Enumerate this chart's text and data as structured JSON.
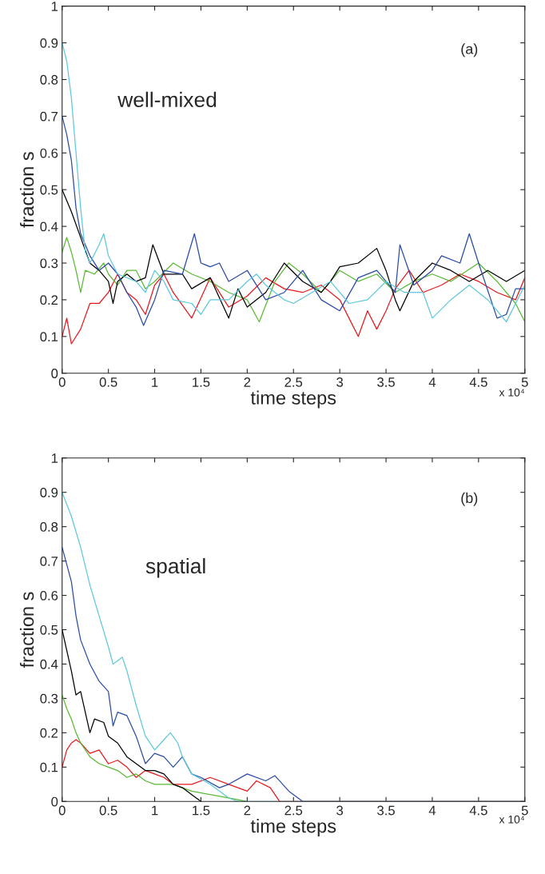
{
  "chart_data": [
    {
      "type": "line",
      "xlabel": "time steps",
      "ylabel": "fraction s",
      "xlim": [
        0,
        5
      ],
      "xticks": [
        0,
        0.5,
        1,
        1.5,
        2,
        2.5,
        3,
        3.5,
        4,
        4.5,
        5
      ],
      "ylim": [
        0,
        1
      ],
      "yticks": [
        0,
        0.1,
        0.2,
        0.3,
        0.4,
        0.5,
        0.6,
        0.7,
        0.8,
        0.9,
        1
      ],
      "grid": false,
      "legend": false,
      "annotations": [
        "(a)",
        "well-mixed",
        "x 10⁴"
      ],
      "series": [
        {
          "color": "#e8191d",
          "x": [
            0,
            0.05,
            0.1,
            0.2,
            0.3,
            0.4,
            0.5,
            0.6,
            0.7,
            0.8,
            0.9,
            1.0,
            1.1,
            1.2,
            1.4,
            1.6,
            1.8,
            2.0,
            2.2,
            2.4,
            2.6,
            2.8,
            3.0,
            3.1,
            3.2,
            3.3,
            3.4,
            3.5,
            3.6,
            3.75,
            3.9,
            4.1,
            4.3,
            4.5,
            4.7,
            4.9,
            5.0
          ],
          "values": [
            0.1,
            0.15,
            0.08,
            0.12,
            0.19,
            0.19,
            0.22,
            0.27,
            0.22,
            0.2,
            0.16,
            0.24,
            0.27,
            0.22,
            0.15,
            0.26,
            0.18,
            0.21,
            0.26,
            0.23,
            0.22,
            0.24,
            0.2,
            0.15,
            0.1,
            0.17,
            0.12,
            0.17,
            0.23,
            0.28,
            0.22,
            0.24,
            0.27,
            0.25,
            0.22,
            0.2,
            0.26
          ]
        },
        {
          "color": "#5ab935",
          "x": [
            0,
            0.05,
            0.1,
            0.15,
            0.2,
            0.25,
            0.35,
            0.45,
            0.5,
            0.6,
            0.7,
            0.8,
            0.9,
            1.0,
            1.2,
            1.4,
            1.6,
            1.8,
            2.0,
            2.13,
            2.3,
            2.45,
            2.6,
            2.8,
            3.0,
            3.2,
            3.4,
            3.6,
            3.8,
            4.0,
            4.2,
            4.5,
            4.7,
            4.9,
            5.0
          ],
          "values": [
            0.33,
            0.37,
            0.33,
            0.28,
            0.22,
            0.28,
            0.27,
            0.3,
            0.27,
            0.24,
            0.28,
            0.28,
            0.23,
            0.25,
            0.3,
            0.27,
            0.25,
            0.22,
            0.2,
            0.14,
            0.25,
            0.3,
            0.27,
            0.22,
            0.28,
            0.25,
            0.27,
            0.22,
            0.25,
            0.27,
            0.25,
            0.3,
            0.25,
            0.19,
            0.14
          ]
        },
        {
          "color": "#000000",
          "x": [
            0,
            0.1,
            0.2,
            0.3,
            0.4,
            0.5,
            0.55,
            0.6,
            0.7,
            0.8,
            0.9,
            0.98,
            1.1,
            1.3,
            1.4,
            1.6,
            1.8,
            1.9,
            2.0,
            2.2,
            2.4,
            2.6,
            2.8,
            2.9,
            3.0,
            3.2,
            3.4,
            3.5,
            3.6,
            3.65,
            3.8,
            4.0,
            4.2,
            4.4,
            4.6,
            4.8,
            5.0
          ],
          "values": [
            0.5,
            0.44,
            0.37,
            0.3,
            0.28,
            0.25,
            0.19,
            0.25,
            0.27,
            0.25,
            0.26,
            0.35,
            0.27,
            0.27,
            0.23,
            0.26,
            0.15,
            0.23,
            0.18,
            0.22,
            0.3,
            0.25,
            0.22,
            0.25,
            0.29,
            0.3,
            0.34,
            0.28,
            0.2,
            0.17,
            0.25,
            0.3,
            0.28,
            0.25,
            0.28,
            0.25,
            0.28
          ]
        },
        {
          "color": "#2b4ba6",
          "x": [
            0,
            0.05,
            0.1,
            0.15,
            0.2,
            0.3,
            0.4,
            0.5,
            0.6,
            0.7,
            0.8,
            0.88,
            1.0,
            1.1,
            1.3,
            1.43,
            1.5,
            1.6,
            1.7,
            1.8,
            2.0,
            2.2,
            2.4,
            2.6,
            2.8,
            3.0,
            3.2,
            3.4,
            3.6,
            3.65,
            3.8,
            4.0,
            4.1,
            4.3,
            4.4,
            4.5,
            4.7,
            4.8,
            4.9,
            5.0
          ],
          "values": [
            0.7,
            0.65,
            0.58,
            0.45,
            0.38,
            0.32,
            0.28,
            0.3,
            0.27,
            0.22,
            0.18,
            0.13,
            0.2,
            0.28,
            0.27,
            0.38,
            0.3,
            0.29,
            0.3,
            0.25,
            0.28,
            0.2,
            0.22,
            0.28,
            0.2,
            0.17,
            0.26,
            0.28,
            0.22,
            0.35,
            0.24,
            0.28,
            0.32,
            0.3,
            0.38,
            0.3,
            0.15,
            0.16,
            0.23,
            0.23
          ]
        },
        {
          "color": "#5ec8dc",
          "x": [
            0,
            0.05,
            0.1,
            0.15,
            0.2,
            0.25,
            0.3,
            0.4,
            0.45,
            0.5,
            0.6,
            0.8,
            0.9,
            1.0,
            1.1,
            1.2,
            1.4,
            1.5,
            1.6,
            1.8,
            2.0,
            2.1,
            2.2,
            2.4,
            2.5,
            2.7,
            2.9,
            3.1,
            3.3,
            3.5,
            3.7,
            3.9,
            4.0,
            4.2,
            4.4,
            4.6,
            4.8,
            5.0
          ],
          "values": [
            0.9,
            0.85,
            0.75,
            0.6,
            0.45,
            0.33,
            0.3,
            0.35,
            0.38,
            0.32,
            0.27,
            0.25,
            0.22,
            0.28,
            0.25,
            0.2,
            0.19,
            0.16,
            0.2,
            0.2,
            0.25,
            0.27,
            0.24,
            0.2,
            0.19,
            0.22,
            0.25,
            0.19,
            0.2,
            0.25,
            0.22,
            0.22,
            0.15,
            0.2,
            0.24,
            0.2,
            0.14,
            0.24
          ]
        }
      ]
    },
    {
      "type": "line",
      "xlabel": "time steps",
      "ylabel": "fraction s",
      "xlim": [
        0,
        5
      ],
      "xticks": [
        0,
        0.5,
        1,
        1.5,
        2,
        2.5,
        3,
        3.5,
        4,
        4.5,
        5
      ],
      "ylim": [
        0,
        1
      ],
      "yticks": [
        0,
        0.1,
        0.2,
        0.3,
        0.4,
        0.5,
        0.6,
        0.7,
        0.8,
        0.9,
        1
      ],
      "grid": false,
      "legend": false,
      "annotations": [
        "(b)",
        "spatial",
        "x 10⁴"
      ],
      "series": [
        {
          "color": "#e8191d",
          "x": [
            0,
            0.05,
            0.1,
            0.15,
            0.2,
            0.3,
            0.4,
            0.5,
            0.6,
            0.7,
            0.8,
            0.9,
            1.0,
            1.1,
            1.2,
            1.4,
            1.6,
            1.8,
            2.0,
            2.1,
            2.25,
            2.35,
            5.0
          ],
          "values": [
            0.1,
            0.15,
            0.17,
            0.18,
            0.17,
            0.14,
            0.15,
            0.11,
            0.12,
            0.1,
            0.07,
            0.09,
            0.08,
            0.07,
            0.05,
            0.05,
            0.07,
            0.05,
            0.03,
            0.06,
            0.04,
            0,
            0
          ]
        },
        {
          "color": "#5ab935",
          "x": [
            0,
            0.05,
            0.1,
            0.15,
            0.2,
            0.3,
            0.4,
            0.5,
            0.6,
            0.7,
            0.8,
            0.9,
            1.0,
            1.2,
            1.4,
            1.6,
            1.8,
            2.0
          ],
          "values": [
            0.31,
            0.27,
            0.24,
            0.2,
            0.17,
            0.13,
            0.11,
            0.1,
            0.09,
            0.07,
            0.08,
            0.06,
            0.05,
            0.05,
            0.03,
            0.02,
            0.01,
            0
          ]
        },
        {
          "color": "#000000",
          "x": [
            0,
            0.05,
            0.1,
            0.15,
            0.2,
            0.3,
            0.35,
            0.45,
            0.5,
            0.6,
            0.7,
            0.8,
            0.9,
            1.0,
            1.1,
            1.2,
            1.3,
            1.4,
            1.5
          ],
          "values": [
            0.5,
            0.44,
            0.38,
            0.31,
            0.32,
            0.2,
            0.24,
            0.23,
            0.19,
            0.17,
            0.13,
            0.11,
            0.09,
            0.09,
            0.08,
            0.05,
            0.04,
            0.02,
            0
          ]
        },
        {
          "color": "#2b4ba6",
          "x": [
            0,
            0.1,
            0.15,
            0.2,
            0.3,
            0.4,
            0.5,
            0.55,
            0.6,
            0.7,
            0.8,
            0.9,
            1.0,
            1.1,
            1.2,
            1.3,
            1.4,
            1.5,
            1.7,
            1.8,
            2.0,
            2.2,
            2.3,
            2.45,
            2.6,
            5.0
          ],
          "values": [
            0.74,
            0.64,
            0.54,
            0.47,
            0.4,
            0.35,
            0.32,
            0.22,
            0.26,
            0.25,
            0.19,
            0.11,
            0.14,
            0.13,
            0.1,
            0.13,
            0.08,
            0.07,
            0.04,
            0.05,
            0.08,
            0.06,
            0.075,
            0.03,
            0,
            0
          ]
        },
        {
          "color": "#5ec8dc",
          "x": [
            0,
            0.1,
            0.2,
            0.3,
            0.4,
            0.5,
            0.55,
            0.6,
            0.65,
            0.7,
            0.8,
            0.9,
            1.0,
            1.1,
            1.17,
            1.25,
            1.3,
            1.4,
            1.6,
            1.8,
            1.9,
            5.0
          ],
          "values": [
            0.9,
            0.83,
            0.74,
            0.63,
            0.54,
            0.45,
            0.4,
            0.41,
            0.42,
            0.38,
            0.28,
            0.19,
            0.15,
            0.18,
            0.2,
            0.17,
            0.13,
            0.08,
            0.05,
            0.01,
            0,
            0
          ]
        }
      ]
    }
  ]
}
